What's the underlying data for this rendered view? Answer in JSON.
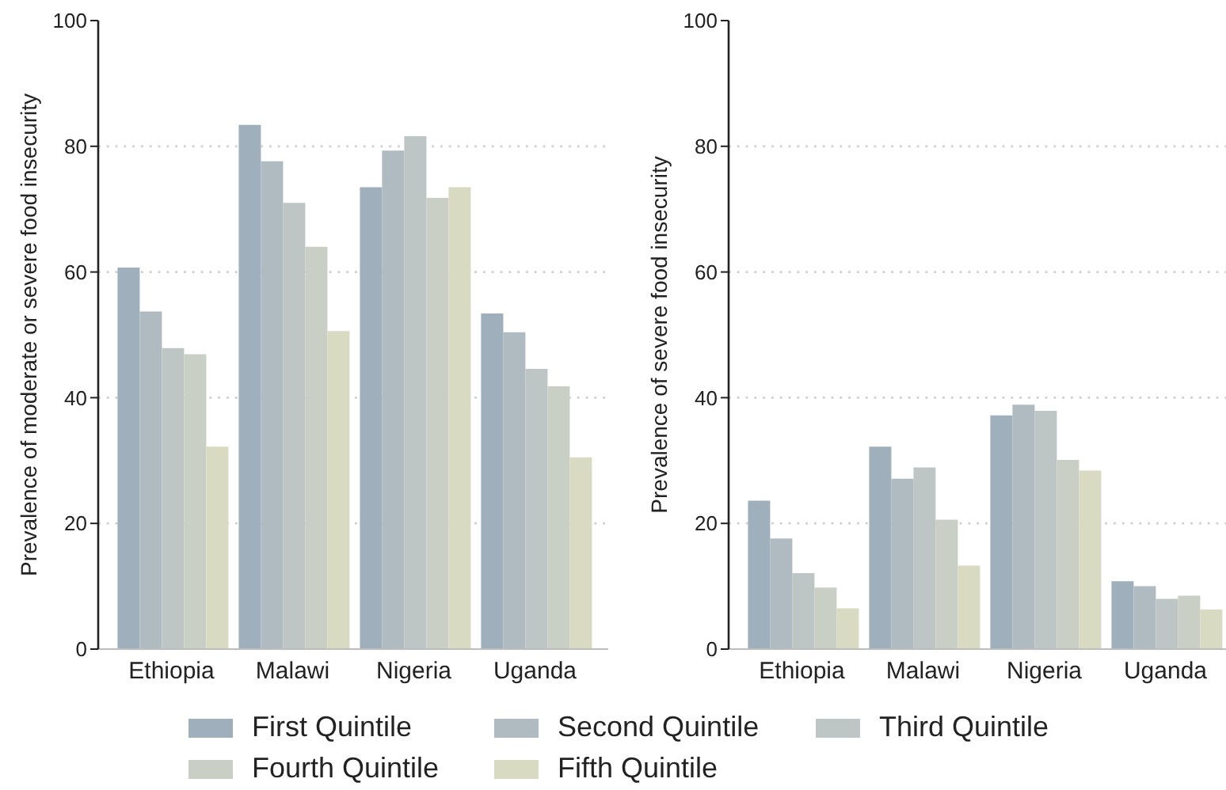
{
  "chart_data": [
    {
      "type": "bar",
      "ylabel": "Prevalence of moderate or severe food insecurity",
      "categories": [
        "Ethiopia",
        "Malawi",
        "Nigeria",
        "Uganda"
      ],
      "series": [
        {
          "name": "First Quintile",
          "color": "#9fb0bc",
          "values": [
            60.7,
            83.4,
            73.5,
            53.4
          ]
        },
        {
          "name": "Second Quintile",
          "color": "#afbbc1",
          "values": [
            53.7,
            77.6,
            79.3,
            50.4
          ]
        },
        {
          "name": "Third Quintile",
          "color": "#bec5c5",
          "values": [
            47.9,
            71.0,
            81.6,
            44.6
          ]
        },
        {
          "name": "Fourth Quintile",
          "color": "#c9cfc4",
          "values": [
            46.9,
            64.0,
            71.8,
            41.8
          ]
        },
        {
          "name": "Fifth Quintile",
          "color": "#d8dac1",
          "values": [
            32.2,
            50.6,
            73.5,
            30.5
          ]
        }
      ],
      "ylim": [
        0,
        100
      ],
      "yticks": [
        0,
        20,
        40,
        60,
        80,
        100
      ],
      "grid": "y",
      "legend": "bottom"
    },
    {
      "type": "bar",
      "ylabel": "Prevalence of severe food insecurity",
      "categories": [
        "Ethiopia",
        "Malawi",
        "Nigeria",
        "Uganda"
      ],
      "series": [
        {
          "color": "#9fb0bc",
          "values": [
            23.6,
            32.2,
            37.2,
            10.8
          ]
        },
        {
          "color": "#afbbc1",
          "values": [
            17.6,
            27.1,
            38.9,
            10.0
          ]
        },
        {
          "color": "#bec5c5",
          "values": [
            12.1,
            28.9,
            37.9,
            8.0
          ]
        },
        {
          "color": "#c9cfc4",
          "values": [
            9.8,
            20.6,
            30.1,
            8.5
          ]
        },
        {
          "color": "#d8dac1",
          "values": [
            6.5,
            13.3,
            28.4,
            6.3
          ]
        }
      ],
      "ylim": [
        0,
        100
      ],
      "yticks": [
        0,
        20,
        40,
        60,
        80,
        100
      ],
      "grid": "y"
    }
  ]
}
